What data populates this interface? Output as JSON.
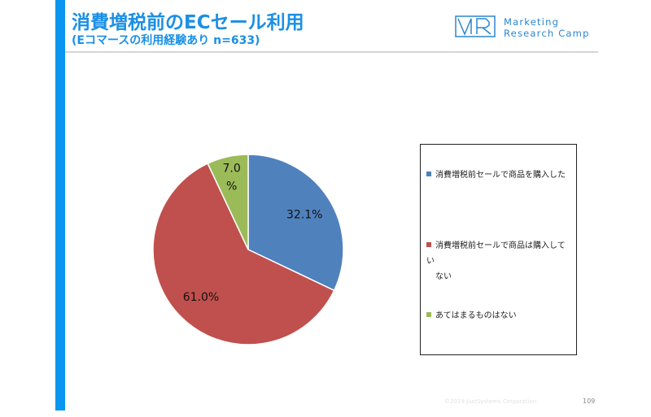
{
  "header": {
    "title": "消費増税前のECセール利用",
    "subtitle": "(Eコマースの利用経験あり n=633)"
  },
  "logo": {
    "mark": "MR",
    "line1": "Marketing",
    "line2": "Research Camp",
    "color": "#2a86d0"
  },
  "chart_data": {
    "type": "pie",
    "categories": [
      "消費増税前セールで商品を購入した",
      "消費増税前セールで商品は購入していない",
      "あてはまるものはない"
    ],
    "values": [
      32.1,
      61.0,
      7.0
    ],
    "data_labels": [
      "32.1%",
      "61.0%",
      "7.0\n%"
    ],
    "colors": [
      "#4f81bd",
      "#c0504d",
      "#9bbb59"
    ],
    "legend_position": "right"
  },
  "legend": {
    "items": [
      {
        "line1": "消費増税前セールで商品を購入した",
        "line2": ""
      },
      {
        "line1": "消費増税前セールで商品は購入してい",
        "line2": "ない"
      },
      {
        "line1": "あてはまるものはない",
        "line2": ""
      }
    ]
  },
  "footer": {
    "copyright": "©2019 JustSystems Corporation",
    "page_number": "109"
  }
}
